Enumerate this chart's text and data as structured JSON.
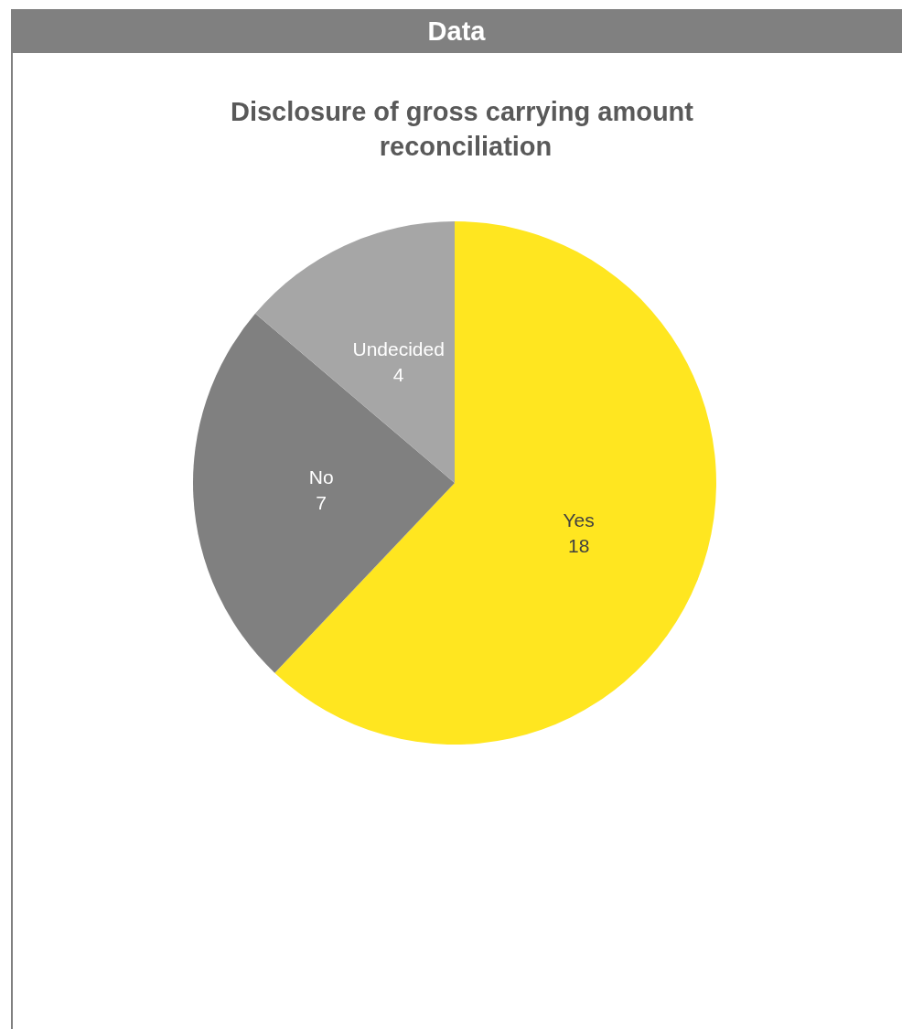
{
  "chart_data": {
    "type": "pie",
    "title": "Disclosure of gross carrying amount reconciliation",
    "annotations": [
      "Data"
    ],
    "categories": [
      "Yes",
      "No",
      "Undecided"
    ],
    "values": [
      18,
      7,
      4
    ],
    "colors": [
      "#ffe620",
      "#808080",
      "#a6a6a6"
    ],
    "data_labels": true
  }
}
